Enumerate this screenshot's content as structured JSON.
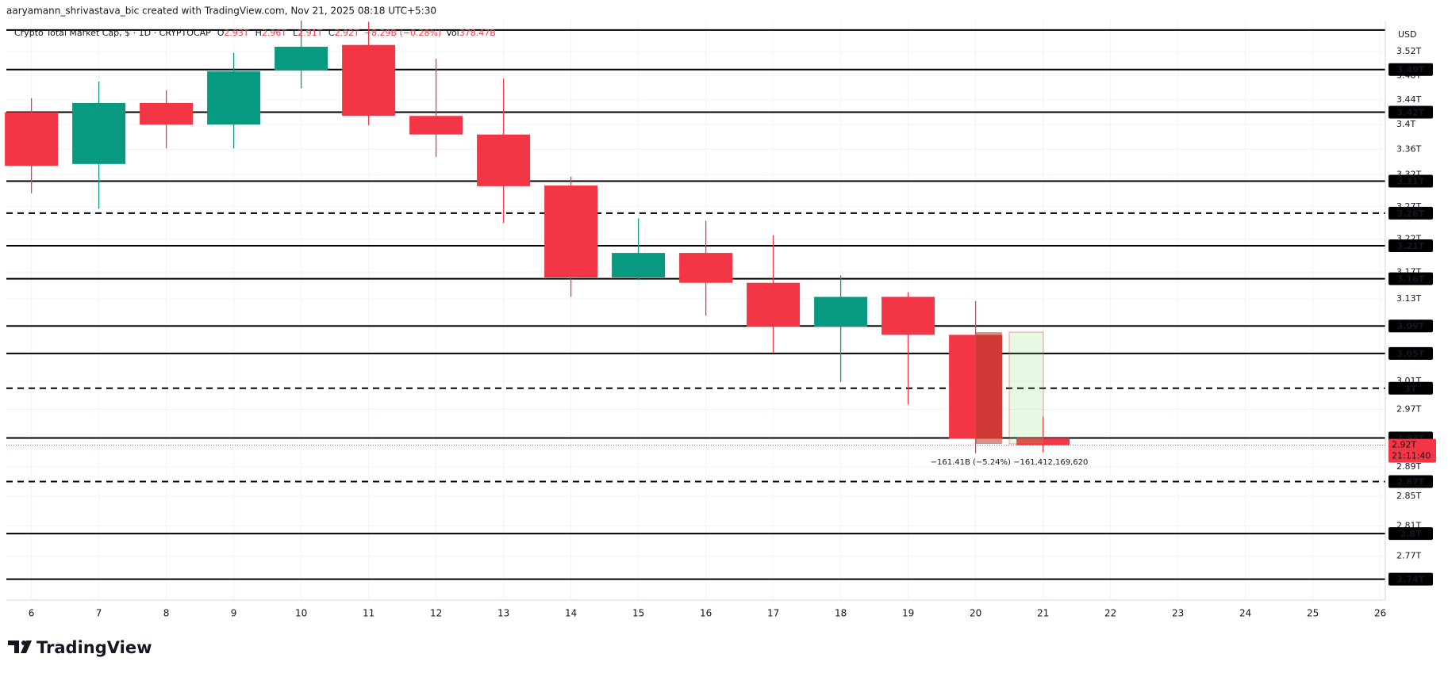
{
  "chart_data": {
    "type": "candlestick",
    "header": "aaryamann_shrivastava_bic created with TradingView.com, Nov 21, 2025 08:18 UTC+5:30",
    "symbol": "Crypto Total Market Cap, $ · 1D · CRYPTOCAP",
    "ohlc_legend": [
      {
        "key": "O",
        "text": "2.93T"
      },
      {
        "key": "H",
        "text": "2.96T"
      },
      {
        "key": "L",
        "text": "2.91T"
      },
      {
        "key": "C",
        "text": "2.92T"
      }
    ],
    "change": "−8.29B (−0.28%)",
    "volume": {
      "key": "Vol",
      "text": "378.47B"
    },
    "currency": "USD",
    "categories": [
      "6",
      "7",
      "8",
      "9",
      "10",
      "11",
      "12",
      "13",
      "14",
      "15",
      "16",
      "17",
      "18",
      "19",
      "20",
      "21",
      "22",
      "23",
      "24",
      "25",
      "26"
    ],
    "open": [
      3.42,
      3.337,
      3.435,
      3.4,
      3.489,
      3.531,
      3.414,
      3.384,
      3.303,
      3.162,
      3.199,
      3.154,
      3.089,
      3.133,
      3.077,
      2.93,
      null,
      null,
      null,
      null,
      null
    ],
    "high": [
      3.443,
      3.47,
      3.456,
      3.518,
      3.572,
      3.57,
      3.508,
      3.475,
      3.317,
      3.252,
      3.248,
      3.226,
      3.165,
      3.14,
      3.127,
      2.96,
      null,
      null,
      null,
      null,
      null
    ],
    "low": [
      3.291,
      3.267,
      3.362,
      3.362,
      3.459,
      3.399,
      3.348,
      3.245,
      3.133,
      3.158,
      3.105,
      3.051,
      3.009,
      2.977,
      2.909,
      2.91,
      null,
      null,
      null,
      null,
      null
    ],
    "close": [
      3.334,
      3.435,
      3.4,
      3.487,
      3.528,
      3.414,
      3.384,
      3.302,
      3.162,
      3.199,
      3.154,
      3.089,
      3.133,
      3.077,
      2.929,
      2.92,
      null,
      null,
      null,
      null,
      null
    ],
    "up_color": "#089981",
    "down_color": "#f23645",
    "log_scale": true,
    "grid": true,
    "ylim": [
      2.713,
      3.572
    ],
    "yticks": [
      {
        "value": 3.52,
        "label": "3.52T"
      },
      {
        "value": 3.48,
        "label": "3.48T"
      },
      {
        "value": 3.44,
        "label": "3.44T"
      },
      {
        "value": 3.4,
        "label": "3.4T"
      },
      {
        "value": 3.36,
        "label": "3.36T"
      },
      {
        "value": 3.32,
        "label": "3.32T"
      },
      {
        "value": 3.27,
        "label": "3.27T"
      },
      {
        "value": 3.22,
        "label": "3.22T"
      },
      {
        "value": 3.17,
        "label": "3.17T"
      },
      {
        "value": 3.13,
        "label": "3.13T"
      },
      {
        "value": 3.01,
        "label": "3.01T"
      },
      {
        "value": 2.97,
        "label": "2.97T"
      },
      {
        "value": 2.89,
        "label": "2.89T"
      },
      {
        "value": 2.85,
        "label": "2.85T"
      },
      {
        "value": 2.81,
        "label": "2.81T"
      },
      {
        "value": 2.77,
        "label": "2.77T"
      }
    ],
    "levels": [
      {
        "value": 3.556,
        "dashed": false
      },
      {
        "value": 3.49,
        "label": "3.49T",
        "dashed": false
      },
      {
        "value": 3.42,
        "label": "3.42T",
        "dashed": false
      },
      {
        "value": 3.31,
        "label": "3.31T",
        "dashed": false
      },
      {
        "value": 3.26,
        "label": "3.26T",
        "dashed": true
      },
      {
        "value": 3.21,
        "label": "3.21T",
        "dashed": false
      },
      {
        "value": 3.16,
        "label": "3.16T",
        "dashed": false
      },
      {
        "value": 3.09,
        "label": "3.09T",
        "dashed": false
      },
      {
        "value": 3.05,
        "label": "3.05T",
        "dashed": false
      },
      {
        "value": 3,
        "label": "3T",
        "dashed": true
      },
      {
        "value": 2.93,
        "label": "2.93T",
        "dashed": false
      },
      {
        "value": 2.87,
        "label": "2.87T",
        "dashed": true
      },
      {
        "value": 2.8,
        "label": "2.8T",
        "dashed": false
      },
      {
        "value": 2.74,
        "label": "2.74T",
        "dashed": false
      }
    ],
    "last_price": {
      "value": 2.92,
      "label": "2.92T"
    },
    "countdown": "21:11:40",
    "measure_text": "−161.41B (−5.24%) −161,412,169,620",
    "brand": "TradingView"
  }
}
